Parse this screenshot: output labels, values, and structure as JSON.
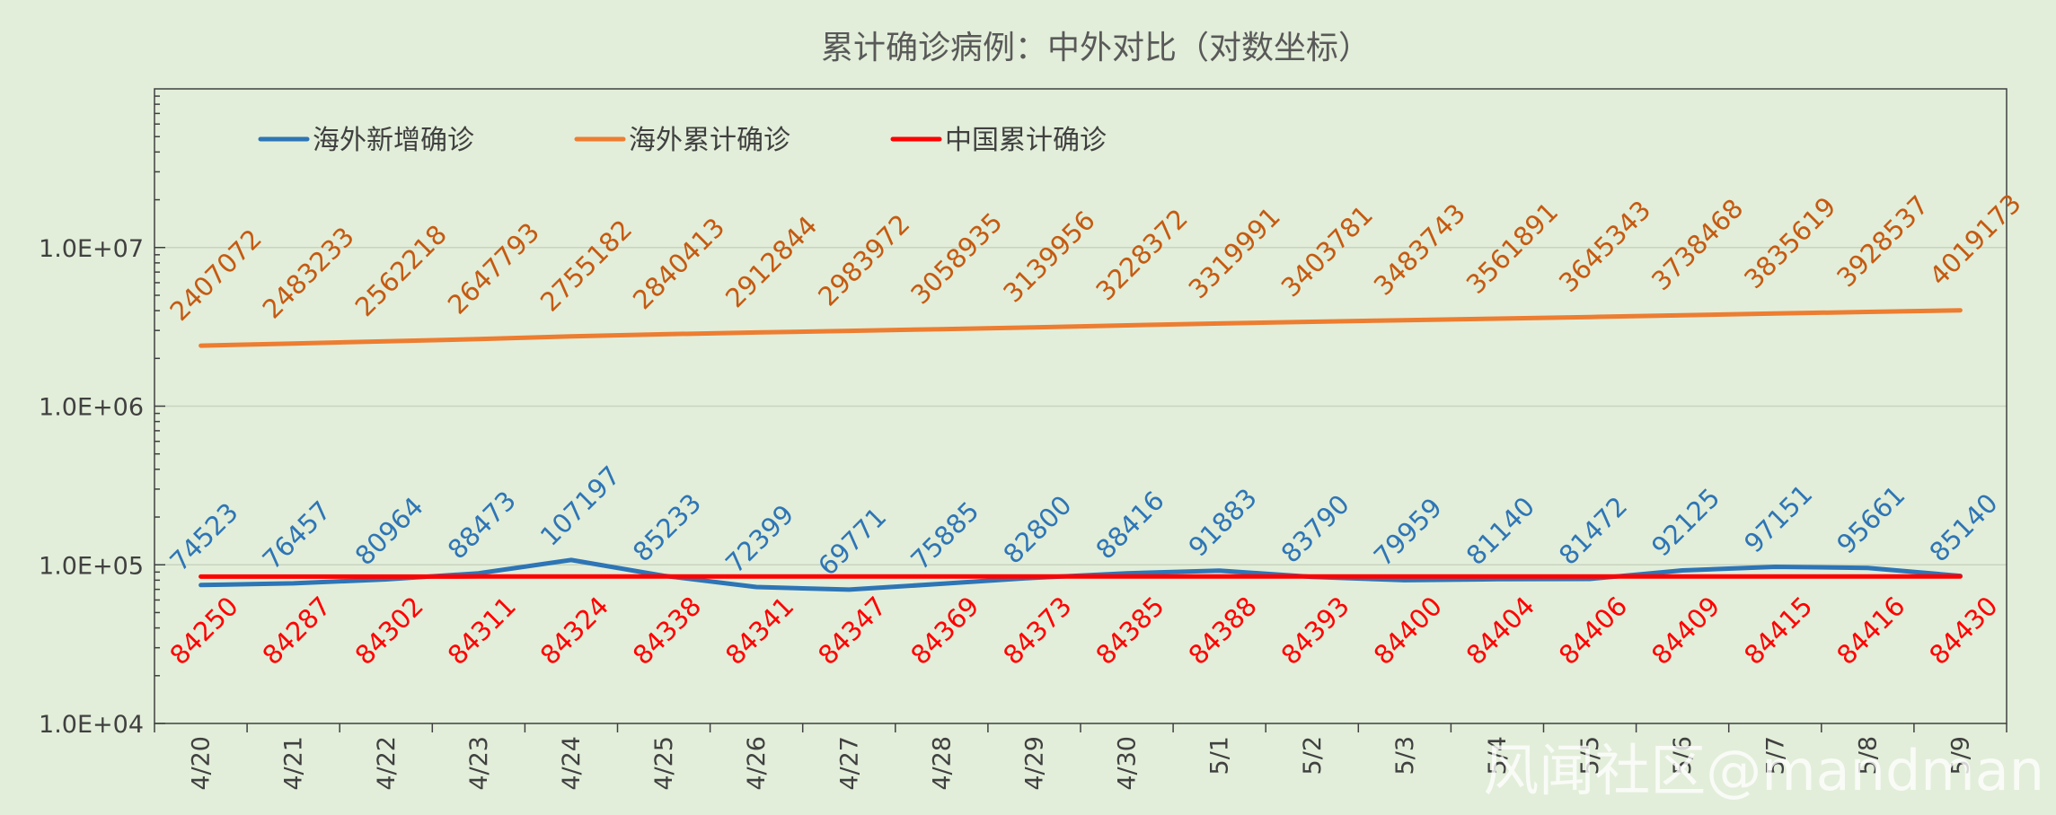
{
  "chart_data": {
    "type": "line",
    "title": "累计确诊病例：中外对比（对数坐标）",
    "categories": [
      "4/20",
      "4/21",
      "4/22",
      "4/23",
      "4/24",
      "4/25",
      "4/26",
      "4/27",
      "4/28",
      "4/29",
      "4/30",
      "5/1",
      "5/2",
      "5/3",
      "5/4",
      "5/5",
      "5/6",
      "5/7",
      "5/8",
      "5/9"
    ],
    "y_scale": "log",
    "ylim": [
      10000,
      100000000
    ],
    "y_tick_labels": [
      "1.0E+04",
      "1.0E+05",
      "1.0E+06",
      "1.0E+07"
    ],
    "y_tick_values": [
      10000,
      100000,
      1000000,
      10000000
    ],
    "legend_position": "top-left",
    "grid": true,
    "series": [
      {
        "name": "海外新增确诊",
        "color": "#2e75b6",
        "label_color": "#2e75b6",
        "values": [
          74523,
          76457,
          80964,
          88473,
          107197,
          85233,
          72399,
          69771,
          75885,
          82800,
          88416,
          91883,
          83790,
          79959,
          81140,
          81472,
          92125,
          97151,
          95661,
          85140
        ]
      },
      {
        "name": "海外累计确诊",
        "color": "#ed7d31",
        "label_color": "#c55a11",
        "values": [
          2407072,
          2483233,
          2562218,
          2647793,
          2755182,
          2840413,
          2912844,
          2983972,
          3058935,
          3139956,
          3228372,
          3319991,
          3403781,
          3483743,
          3561891,
          3645343,
          3738468,
          3835619,
          3928537,
          4019173
        ]
      },
      {
        "name": "中国累计确诊",
        "color": "#ff0000",
        "label_color": "#ff0000",
        "values": [
          84250,
          84287,
          84302,
          84311,
          84324,
          84338,
          84341,
          84347,
          84369,
          84373,
          84385,
          84388,
          84393,
          84400,
          84404,
          84406,
          84409,
          84415,
          84416,
          84430
        ]
      }
    ]
  },
  "watermark": "风闻社区@mandman"
}
